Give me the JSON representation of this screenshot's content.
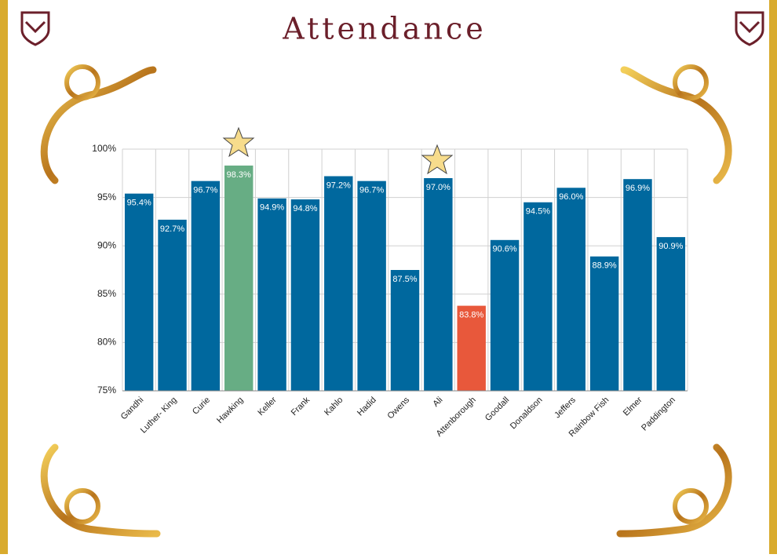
{
  "chart_data": {
    "type": "bar",
    "title": "Attendance",
    "categories": [
      "Gandhi",
      "Luther- King",
      "Curie",
      "Hawking",
      "Keller",
      "Frank",
      "Kahlo",
      "Hadid",
      "Owens",
      "Ali",
      "Attenborough",
      "Goodall",
      "Donaldson",
      "Jeffers",
      "Rainbow Fish",
      "Elmer",
      "Paddington"
    ],
    "values": [
      95.4,
      92.7,
      96.7,
      98.3,
      94.9,
      94.8,
      97.2,
      96.7,
      87.5,
      97.0,
      83.8,
      90.6,
      94.5,
      96.0,
      88.9,
      96.9,
      90.9
    ],
    "value_labels": [
      "95.4%",
      "92.7%",
      "96.7%",
      "98.3%",
      "94.9%",
      "94.8%",
      "97.2%",
      "96.7%",
      "87.5%",
      "97.0%",
      "83.8%",
      "90.6%",
      "94.5%",
      "96.0%",
      "88.9%",
      "96.9%",
      "90.9%"
    ],
    "colors": [
      "#00689e",
      "#00689e",
      "#00689e",
      "#67ad84",
      "#00689e",
      "#00689e",
      "#00689e",
      "#00689e",
      "#00689e",
      "#00689e",
      "#e8583b",
      "#00689e",
      "#00689e",
      "#00689e",
      "#00689e",
      "#00689e",
      "#00689e"
    ],
    "ylim": [
      75,
      100
    ],
    "yticks": [
      {
        "value": 75,
        "label": "75%"
      },
      {
        "value": 80,
        "label": "80%"
      },
      {
        "value": 85,
        "label": "85%"
      },
      {
        "value": 90,
        "label": "90%"
      },
      {
        "value": 95,
        "label": "95%"
      },
      {
        "value": 100,
        "label": "100%"
      }
    ],
    "grid": true
  }
}
